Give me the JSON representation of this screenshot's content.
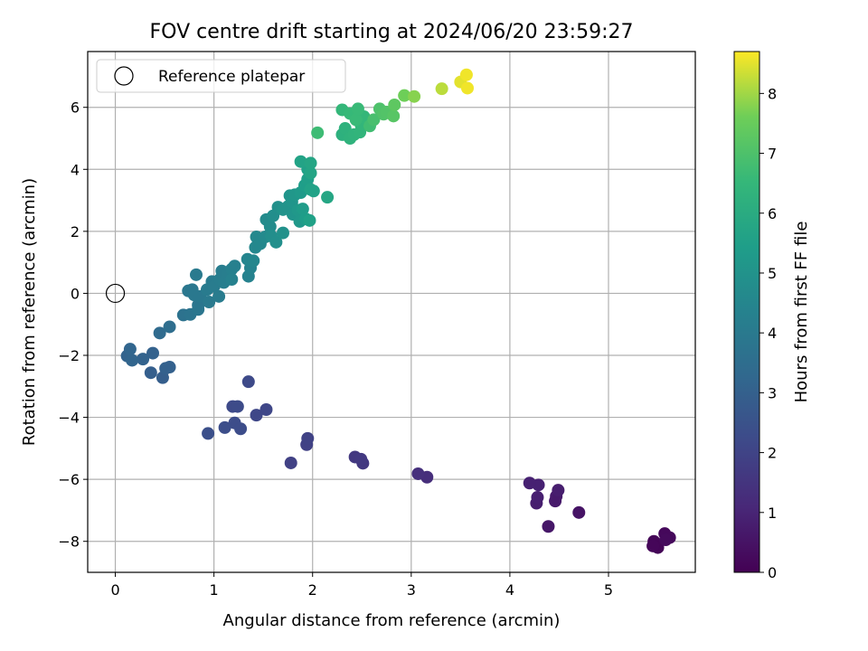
{
  "chart_data": {
    "type": "scatter",
    "title": "FOV centre drift starting at 2024/06/20 23:59:27",
    "xlabel": "Angular distance from reference (arcmin)",
    "ylabel": "Rotation from reference (arcmin)",
    "xlim": [
      -0.28,
      5.88
    ],
    "ylim": [
      -9.0,
      7.8
    ],
    "xticks": [
      0,
      1,
      2,
      3,
      4,
      5
    ],
    "yticks": [
      -8,
      -6,
      -4,
      -2,
      0,
      2,
      4,
      6
    ],
    "grid": true,
    "legend": {
      "placement": "top-left",
      "entries": [
        "Reference platepar"
      ]
    },
    "reference_point": {
      "x": 0,
      "y": 0
    },
    "colorbar": {
      "label": "Hours from first FF file",
      "range": [
        0,
        8.7
      ],
      "ticks": [
        0,
        1,
        2,
        3,
        4,
        5,
        6,
        7,
        8
      ],
      "colormap": "viridis"
    },
    "points": [
      {
        "x": 5.46,
        "y": -8.0,
        "h": 0.1
      },
      {
        "x": 5.5,
        "y": -8.2,
        "h": 0.1
      },
      {
        "x": 5.57,
        "y": -7.75,
        "h": 0.2
      },
      {
        "x": 5.62,
        "y": -7.88,
        "h": 0.2
      },
      {
        "x": 5.45,
        "y": -8.15,
        "h": 0.15
      },
      {
        "x": 5.58,
        "y": -7.95,
        "h": 0.25
      },
      {
        "x": 4.7,
        "y": -7.07,
        "h": 0.5
      },
      {
        "x": 4.39,
        "y": -7.52,
        "h": 0.6
      },
      {
        "x": 4.46,
        "y": -6.7,
        "h": 0.7
      },
      {
        "x": 4.47,
        "y": -6.55,
        "h": 0.7
      },
      {
        "x": 4.49,
        "y": -6.35,
        "h": 0.8
      },
      {
        "x": 4.27,
        "y": -6.77,
        "h": 0.8
      },
      {
        "x": 4.28,
        "y": -6.58,
        "h": 0.85
      },
      {
        "x": 4.29,
        "y": -6.18,
        "h": 0.9
      },
      {
        "x": 4.2,
        "y": -6.12,
        "h": 0.9
      },
      {
        "x": 3.16,
        "y": -5.93,
        "h": 1.3
      },
      {
        "x": 3.07,
        "y": -5.82,
        "h": 1.35
      },
      {
        "x": 2.43,
        "y": -5.28,
        "h": 1.6
      },
      {
        "x": 2.51,
        "y": -5.48,
        "h": 1.6
      },
      {
        "x": 2.49,
        "y": -5.35,
        "h": 1.65
      },
      {
        "x": 1.78,
        "y": -5.47,
        "h": 1.9
      },
      {
        "x": 1.94,
        "y": -4.88,
        "h": 1.9
      },
      {
        "x": 1.95,
        "y": -4.68,
        "h": 1.95
      },
      {
        "x": 1.43,
        "y": -3.93,
        "h": 2.1
      },
      {
        "x": 1.53,
        "y": -3.75,
        "h": 2.1
      },
      {
        "x": 1.35,
        "y": -2.85,
        "h": 2.2
      },
      {
        "x": 1.19,
        "y": -3.65,
        "h": 2.2
      },
      {
        "x": 1.24,
        "y": -3.65,
        "h": 2.25
      },
      {
        "x": 1.21,
        "y": -4.18,
        "h": 2.3
      },
      {
        "x": 1.27,
        "y": -4.37,
        "h": 2.3
      },
      {
        "x": 1.11,
        "y": -4.33,
        "h": 2.35
      },
      {
        "x": 0.94,
        "y": -4.52,
        "h": 2.4
      },
      {
        "x": 0.48,
        "y": -2.72,
        "h": 2.9
      },
      {
        "x": 0.36,
        "y": -2.56,
        "h": 2.95
      },
      {
        "x": 0.51,
        "y": -2.42,
        "h": 3.0
      },
      {
        "x": 0.55,
        "y": -2.38,
        "h": 3.0
      },
      {
        "x": 0.38,
        "y": -1.93,
        "h": 3.05
      },
      {
        "x": 0.28,
        "y": -2.12,
        "h": 3.1
      },
      {
        "x": 0.12,
        "y": -2.02,
        "h": 3.1
      },
      {
        "x": 0.17,
        "y": -2.16,
        "h": 3.15
      },
      {
        "x": 0.15,
        "y": -1.8,
        "h": 3.2
      },
      {
        "x": 0.45,
        "y": -1.28,
        "h": 3.4
      },
      {
        "x": 0.55,
        "y": -1.08,
        "h": 3.5
      },
      {
        "x": 0.69,
        "y": -0.7,
        "h": 3.7
      },
      {
        "x": 0.76,
        "y": -0.68,
        "h": 3.75
      },
      {
        "x": 0.84,
        "y": -0.38,
        "h": 3.8
      },
      {
        "x": 0.84,
        "y": -0.52,
        "h": 3.85
      },
      {
        "x": 0.74,
        "y": 0.08,
        "h": 3.9
      },
      {
        "x": 0.78,
        "y": 0.12,
        "h": 3.9
      },
      {
        "x": 0.8,
        "y": -0.05,
        "h": 3.95
      },
      {
        "x": 0.86,
        "y": -0.1,
        "h": 3.95
      },
      {
        "x": 0.82,
        "y": 0.6,
        "h": 4.0
      },
      {
        "x": 0.95,
        "y": -0.28,
        "h": 4.0
      },
      {
        "x": 0.93,
        "y": 0.12,
        "h": 4.05
      },
      {
        "x": 0.98,
        "y": 0.38,
        "h": 4.05
      },
      {
        "x": 1.0,
        "y": 0.22,
        "h": 4.1
      },
      {
        "x": 1.05,
        "y": -0.1,
        "h": 4.1
      },
      {
        "x": 1.06,
        "y": 0.45,
        "h": 4.15
      },
      {
        "x": 1.08,
        "y": 0.72,
        "h": 4.15
      },
      {
        "x": 1.1,
        "y": 0.35,
        "h": 4.2
      },
      {
        "x": 1.14,
        "y": 0.62,
        "h": 4.2
      },
      {
        "x": 1.18,
        "y": 0.78,
        "h": 4.25
      },
      {
        "x": 1.21,
        "y": 0.88,
        "h": 4.25
      },
      {
        "x": 1.18,
        "y": 0.45,
        "h": 4.3
      },
      {
        "x": 1.35,
        "y": 0.55,
        "h": 4.35
      },
      {
        "x": 1.37,
        "y": 0.82,
        "h": 4.4
      },
      {
        "x": 1.34,
        "y": 1.1,
        "h": 4.45
      },
      {
        "x": 1.4,
        "y": 1.05,
        "h": 4.5
      },
      {
        "x": 1.42,
        "y": 1.48,
        "h": 4.55
      },
      {
        "x": 1.43,
        "y": 1.82,
        "h": 4.6
      },
      {
        "x": 1.47,
        "y": 1.6,
        "h": 4.6
      },
      {
        "x": 1.52,
        "y": 1.82,
        "h": 4.65
      },
      {
        "x": 1.53,
        "y": 2.38,
        "h": 4.7
      },
      {
        "x": 1.57,
        "y": 2.15,
        "h": 4.75
      },
      {
        "x": 1.58,
        "y": 1.85,
        "h": 4.8
      },
      {
        "x": 1.6,
        "y": 2.5,
        "h": 4.8
      },
      {
        "x": 1.63,
        "y": 1.65,
        "h": 4.85
      },
      {
        "x": 1.65,
        "y": 2.78,
        "h": 4.9
      },
      {
        "x": 1.7,
        "y": 1.95,
        "h": 4.95
      },
      {
        "x": 1.7,
        "y": 2.7,
        "h": 5.0
      },
      {
        "x": 1.75,
        "y": 2.8,
        "h": 5.0
      },
      {
        "x": 1.77,
        "y": 3.15,
        "h": 5.05
      },
      {
        "x": 1.79,
        "y": 2.95,
        "h": 5.1
      },
      {
        "x": 1.8,
        "y": 2.55,
        "h": 5.1
      },
      {
        "x": 1.82,
        "y": 3.18,
        "h": 5.15
      },
      {
        "x": 1.85,
        "y": 2.68,
        "h": 5.2
      },
      {
        "x": 1.87,
        "y": 2.32,
        "h": 5.2
      },
      {
        "x": 1.88,
        "y": 3.25,
        "h": 5.3
      },
      {
        "x": 1.9,
        "y": 2.72,
        "h": 5.35
      },
      {
        "x": 1.93,
        "y": 2.4,
        "h": 5.4
      },
      {
        "x": 1.92,
        "y": 3.48,
        "h": 5.45
      },
      {
        "x": 1.95,
        "y": 3.68,
        "h": 5.5
      },
      {
        "x": 1.95,
        "y": 4.0,
        "h": 5.55
      },
      {
        "x": 1.97,
        "y": 2.35,
        "h": 5.55
      },
      {
        "x": 1.98,
        "y": 3.35,
        "h": 5.6
      },
      {
        "x": 2.01,
        "y": 3.3,
        "h": 5.6
      },
      {
        "x": 1.88,
        "y": 4.25,
        "h": 5.65
      },
      {
        "x": 1.98,
        "y": 3.88,
        "h": 5.7
      },
      {
        "x": 1.98,
        "y": 4.2,
        "h": 5.75
      },
      {
        "x": 2.15,
        "y": 3.1,
        "h": 5.8
      },
      {
        "x": 2.3,
        "y": 5.12,
        "h": 6.2
      },
      {
        "x": 2.33,
        "y": 5.32,
        "h": 6.25
      },
      {
        "x": 2.38,
        "y": 5.0,
        "h": 6.3
      },
      {
        "x": 2.42,
        "y": 5.12,
        "h": 6.35
      },
      {
        "x": 2.48,
        "y": 5.2,
        "h": 6.4
      },
      {
        "x": 2.49,
        "y": 5.45,
        "h": 6.45
      },
      {
        "x": 2.52,
        "y": 5.7,
        "h": 6.5
      },
      {
        "x": 2.3,
        "y": 5.92,
        "h": 6.5
      },
      {
        "x": 2.38,
        "y": 5.8,
        "h": 6.55
      },
      {
        "x": 2.44,
        "y": 5.6,
        "h": 6.6
      },
      {
        "x": 2.46,
        "y": 5.95,
        "h": 6.6
      },
      {
        "x": 2.05,
        "y": 5.18,
        "h": 6.7
      },
      {
        "x": 2.58,
        "y": 5.4,
        "h": 6.75
      },
      {
        "x": 2.62,
        "y": 5.6,
        "h": 6.9
      },
      {
        "x": 2.68,
        "y": 5.95,
        "h": 7.0
      },
      {
        "x": 2.72,
        "y": 5.78,
        "h": 7.05
      },
      {
        "x": 2.75,
        "y": 5.85,
        "h": 7.1
      },
      {
        "x": 2.82,
        "y": 5.72,
        "h": 7.2
      },
      {
        "x": 2.83,
        "y": 6.08,
        "h": 7.3
      },
      {
        "x": 2.93,
        "y": 6.38,
        "h": 7.6
      },
      {
        "x": 3.03,
        "y": 6.35,
        "h": 7.8
      },
      {
        "x": 3.31,
        "y": 6.6,
        "h": 8.2
      },
      {
        "x": 3.5,
        "y": 6.82,
        "h": 8.5
      },
      {
        "x": 3.56,
        "y": 7.05,
        "h": 8.6
      },
      {
        "x": 3.57,
        "y": 6.62,
        "h": 8.6
      }
    ]
  }
}
